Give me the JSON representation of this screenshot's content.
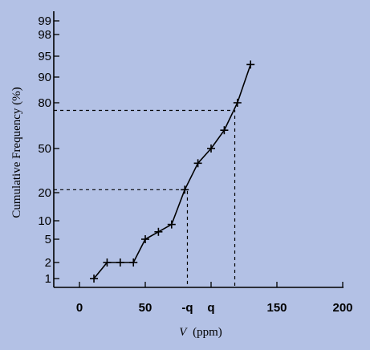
{
  "chart_data": {
    "type": "line",
    "title": "",
    "xlabel_italic": "V",
    "xlabel_unit": "(ppm)",
    "ylabel": "Cumulative Frequency (%)",
    "x_scale": "linear",
    "y_scale": "probability",
    "xlim": [
      -10,
      200
    ],
    "x_ticks": [
      {
        "value": 0,
        "label": "0"
      },
      {
        "value": 50,
        "label": "50"
      },
      {
        "value": 100,
        "label": "q"
      },
      {
        "value": 150,
        "label": "150"
      },
      {
        "value": 200,
        "label": "200"
      }
    ],
    "x_extra_labels": [
      {
        "value": 82,
        "label": "-q"
      }
    ],
    "y_ticks": [
      1,
      2,
      5,
      10,
      20,
      50,
      80,
      90,
      95,
      98,
      99
    ],
    "series": [
      {
        "x": [
          11,
          21,
          31,
          41,
          50,
          60,
          70,
          80,
          90,
          100,
          110,
          120,
          130
        ],
        "y": [
          1,
          2,
          2,
          2,
          5,
          7,
          9,
          22,
          40,
          50,
          62,
          80,
          93
        ]
      }
    ],
    "reference_lines": [
      {
        "y": 22,
        "x": 82
      },
      {
        "y": 75,
        "x": 118
      }
    ],
    "grid": false,
    "legend": "none"
  }
}
